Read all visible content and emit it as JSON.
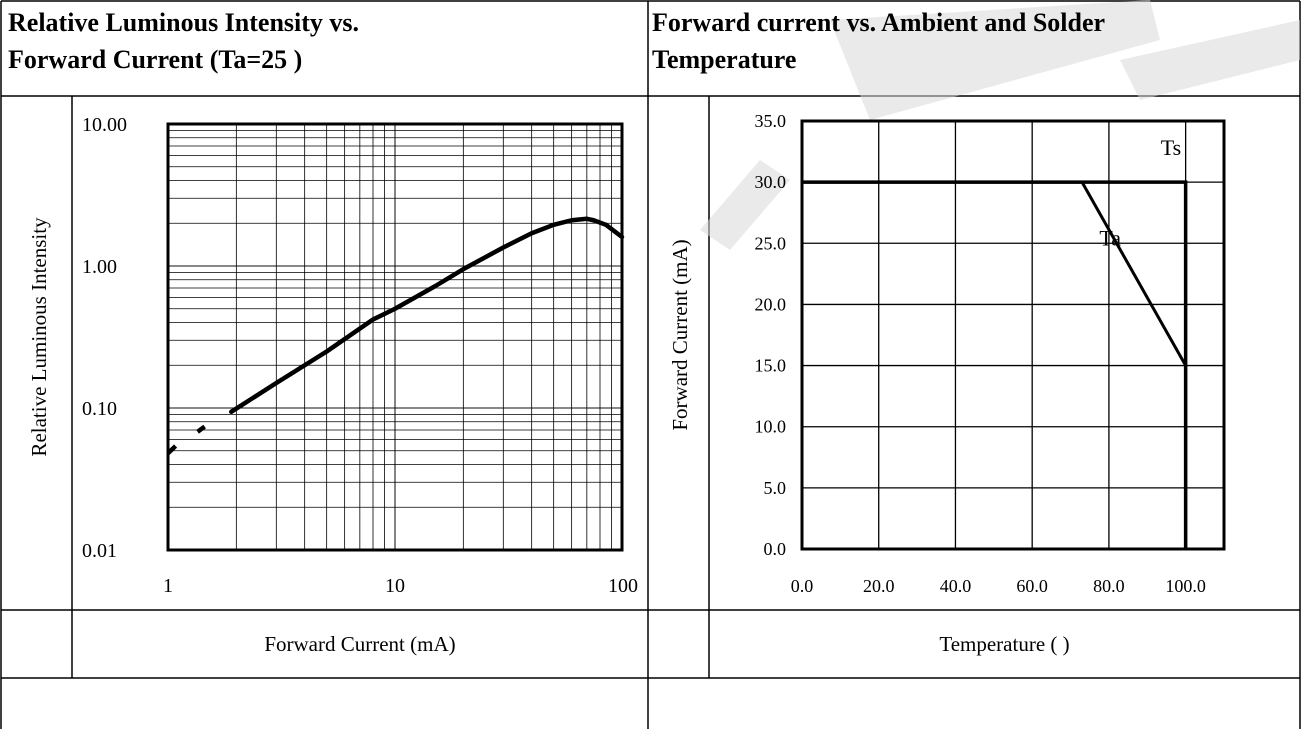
{
  "left_title": {
    "line1": "Relative Luminous Intensity vs.",
    "line2": "Forward Current (Ta=25    )"
  },
  "right_title": {
    "line1": "Forward current vs. Ambient and Solder",
    "line2": "Temperature"
  },
  "left_caption": "Forward Current (mA)",
  "right_caption": "Temperature (   )",
  "colors": {
    "line": "#000000",
    "grid": "#000000",
    "watermark": "#d9d9d9"
  },
  "chart_data": [
    {
      "type": "line",
      "title": "Relative Luminous Intensity vs. Forward Current (Ta=25    )",
      "xlabel": "Forward Current (mA)",
      "ylabel": "Relative Luminous Intensity",
      "x_scale": "log",
      "y_scale": "log",
      "xlim": [
        1,
        100
      ],
      "ylim": [
        0.01,
        10
      ],
      "x_ticks": [
        {
          "value": 1,
          "label": "1"
        },
        {
          "value": 10,
          "label": "10"
        },
        {
          "value": 100,
          "label": "100"
        }
      ],
      "y_ticks": [
        {
          "value": 0.01,
          "label": "0.01"
        },
        {
          "value": 0.1,
          "label": "0.10"
        },
        {
          "value": 1,
          "label": "1.00"
        },
        {
          "value": 10,
          "label": "10.00"
        }
      ],
      "grid": true,
      "series": [
        {
          "dashed_points": [
            [
              1,
              0.048
            ],
            [
              1.08,
              0.054
            ],
            [
              1.35,
              0.068
            ],
            [
              1.45,
              0.074
            ]
          ],
          "points": [
            [
              1.9,
              0.094
            ],
            [
              3,
              0.15
            ],
            [
              5,
              0.25
            ],
            [
              8,
              0.42
            ],
            [
              10,
              0.5
            ],
            [
              15,
              0.72
            ],
            [
              20,
              0.95
            ],
            [
              30,
              1.35
            ],
            [
              40,
              1.7
            ],
            [
              50,
              1.95
            ],
            [
              60,
              2.1
            ],
            [
              70,
              2.15
            ],
            [
              75,
              2.1
            ],
            [
              85,
              1.95
            ],
            [
              100,
              1.6
            ]
          ]
        }
      ]
    },
    {
      "type": "line",
      "title": "Forward current vs. Ambient and Solder Temperature",
      "xlabel": "Temperature (   )",
      "ylabel": "Forward Current (mA)",
      "xlim": [
        0,
        110
      ],
      "ylim": [
        0,
        35
      ],
      "x_ticks": [
        {
          "value": 0,
          "label": "0.0"
        },
        {
          "value": 20,
          "label": "20.0"
        },
        {
          "value": 40,
          "label": "40.0"
        },
        {
          "value": 60,
          "label": "60.0"
        },
        {
          "value": 80,
          "label": "80.0"
        },
        {
          "value": 100,
          "label": "100.0"
        }
      ],
      "y_ticks": [
        {
          "value": 0,
          "label": "0.0"
        },
        {
          "value": 5,
          "label": "5.0"
        },
        {
          "value": 10,
          "label": "10.0"
        },
        {
          "value": 15,
          "label": "15.0"
        },
        {
          "value": 20,
          "label": "20.0"
        },
        {
          "value": 25,
          "label": "25.0"
        },
        {
          "value": 30,
          "label": "30.0"
        },
        {
          "value": 35,
          "label": "35.0"
        }
      ],
      "grid": true,
      "series": [
        {
          "name": "Ts",
          "points": [
            [
              0,
              30
            ],
            [
              100,
              30
            ],
            [
              100,
              0
            ]
          ]
        },
        {
          "name": "Ta",
          "points": [
            [
              0,
              30
            ],
            [
              73,
              30
            ],
            [
              100,
              15
            ],
            [
              100,
              0
            ]
          ]
        }
      ]
    }
  ]
}
